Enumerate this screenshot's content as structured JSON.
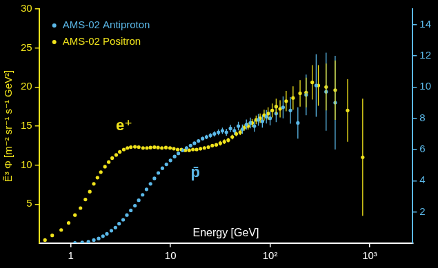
{
  "chart_data": {
    "type": "scatter",
    "xlabel": "Energy [GeV]",
    "ylabel": "Ẽ³ Φ [m⁻² sr⁻¹ s⁻¹ GeV²]",
    "log": "x",
    "grid": false,
    "legend": "upper left",
    "marker": "circle",
    "xlim": [
      0.48,
      2700
    ],
    "xticks": [
      1,
      10,
      {
        "value": 100,
        "label": "10²"
      },
      {
        "value": 1000,
        "label": "10³"
      }
    ],
    "ylim": [
      0,
      30
    ],
    "yticks": [
      5,
      10,
      15,
      20,
      25,
      30
    ],
    "y2lim": [
      0,
      15
    ],
    "y2ticks": [
      2,
      4,
      6,
      8,
      10,
      12,
      14
    ],
    "annotations": [
      {
        "text": "e⁺",
        "x": 3.43,
        "y": 15.0,
        "color": "#f0e31c"
      },
      {
        "text": "p̄",
        "x": 17.8,
        "y": 9.0,
        "color": "#5bb8e8"
      }
    ],
    "series": [
      {
        "name": "AMS-02 Antiproton",
        "color": "#5bb8e8",
        "axis": "y2",
        "x": [
          1.1,
          1.3,
          1.5,
          1.7,
          1.9,
          2.1,
          2.3,
          2.55,
          2.8,
          3.05,
          3.35,
          3.65,
          4.0,
          4.4,
          4.8,
          5.25,
          5.75,
          6.3,
          6.9,
          7.55,
          8.3,
          9.1,
          10.0,
          11.0,
          12.0,
          13.2,
          14.5,
          15.9,
          17.4,
          19.1,
          21.0,
          23.0,
          25.2,
          27.6,
          30.3,
          33.2,
          36.4,
          40.0,
          43.8,
          48.0,
          52.7,
          57.8,
          63.4,
          69.5,
          76.2,
          83.6,
          91.7,
          100,
          115,
          135,
          160,
          190,
          230,
          290,
          365,
          450
        ],
        "values": [
          0.02,
          0.05,
          0.1,
          0.2,
          0.3,
          0.45,
          0.6,
          0.8,
          1.0,
          1.25,
          1.5,
          1.8,
          2.1,
          2.4,
          2.75,
          3.1,
          3.45,
          3.8,
          4.15,
          4.5,
          4.8,
          5.05,
          5.3,
          5.55,
          5.75,
          5.95,
          6.1,
          6.25,
          6.4,
          6.55,
          6.7,
          6.8,
          6.9,
          7.0,
          7.1,
          7.2,
          7.1,
          7.35,
          7.2,
          7.5,
          7.3,
          7.6,
          7.7,
          7.5,
          7.9,
          7.8,
          8.1,
          8.0,
          8.3,
          8.7,
          8.5,
          7.7,
          9.5,
          10.1,
          9.7,
          9.0
        ],
        "errors": [
          0.05,
          0.05,
          0.05,
          0.05,
          0.05,
          0.05,
          0.05,
          0.05,
          0.05,
          0.05,
          0.05,
          0.05,
          0.05,
          0.05,
          0.05,
          0.05,
          0.05,
          0.05,
          0.05,
          0.05,
          0.1,
          0.1,
          0.1,
          0.1,
          0.1,
          0.1,
          0.1,
          0.1,
          0.1,
          0.1,
          0.12,
          0.14,
          0.15,
          0.17,
          0.19,
          0.2,
          0.22,
          0.24,
          0.26,
          0.28,
          0.3,
          0.32,
          0.34,
          0.36,
          0.38,
          0.4,
          0.43,
          0.46,
          0.55,
          0.7,
          0.85,
          1.0,
          1.3,
          2.0,
          2.5,
          3.0
        ]
      },
      {
        "name": "AMS-02 Positron",
        "color": "#f0e31c",
        "axis": "y",
        "x": [
          0.55,
          0.65,
          0.8,
          0.95,
          1.1,
          1.25,
          1.4,
          1.55,
          1.7,
          1.85,
          2.0,
          2.2,
          2.4,
          2.6,
          2.85,
          3.1,
          3.4,
          3.7,
          4.0,
          4.4,
          4.8,
          5.3,
          5.8,
          6.3,
          6.9,
          7.5,
          8.2,
          9.0,
          9.9,
          10.8,
          11.8,
          12.9,
          14.1,
          15.4,
          16.8,
          18.3,
          20.0,
          21.9,
          24.0,
          26.3,
          28.8,
          31.6,
          34.7,
          38.0,
          41.7,
          45.7,
          50.1,
          55.0,
          60.2,
          66.0,
          72.4,
          79.4,
          87.1,
          95.5,
          105,
          115,
          126,
          145,
          170,
          200,
          230,
          265,
          305,
          365,
          450,
          600,
          850
        ],
        "values": [
          0.4,
          1.0,
          1.7,
          2.6,
          3.6,
          4.5,
          5.6,
          6.6,
          7.6,
          8.4,
          9.1,
          9.8,
          10.4,
          10.9,
          11.3,
          11.7,
          12.0,
          12.2,
          12.3,
          12.35,
          12.3,
          12.2,
          12.2,
          12.25,
          12.3,
          12.25,
          12.2,
          12.25,
          12.2,
          12.1,
          12.0,
          12.0,
          11.9,
          11.9,
          12.0,
          12.0,
          12.1,
          12.2,
          12.3,
          12.5,
          12.6,
          12.8,
          13.0,
          13.2,
          13.6,
          14.0,
          14.2,
          14.8,
          15.0,
          15.4,
          15.8,
          16.0,
          16.4,
          16.6,
          17.0,
          17.5,
          17.2,
          18.2,
          18.6,
          19.2,
          19.3,
          20.6,
          20.2,
          20.0,
          19.6,
          17.0,
          11.0
        ],
        "errors": [
          0.1,
          0.1,
          0.1,
          0.1,
          0.1,
          0.1,
          0.1,
          0.1,
          0.1,
          0.1,
          0.1,
          0.1,
          0.1,
          0.1,
          0.1,
          0.1,
          0.1,
          0.1,
          0.1,
          0.1,
          0.1,
          0.1,
          0.1,
          0.1,
          0.1,
          0.1,
          0.1,
          0.1,
          0.1,
          0.15,
          0.15,
          0.15,
          0.15,
          0.15,
          0.15,
          0.15,
          0.2,
          0.2,
          0.2,
          0.2,
          0.2,
          0.3,
          0.3,
          0.3,
          0.3,
          0.3,
          0.35,
          0.4,
          0.45,
          0.5,
          0.55,
          0.6,
          0.7,
          0.8,
          0.9,
          1.0,
          1.1,
          1.3,
          1.5,
          1.7,
          1.9,
          2.2,
          2.6,
          3.0,
          3.8,
          4.0,
          7.5
        ]
      }
    ]
  }
}
